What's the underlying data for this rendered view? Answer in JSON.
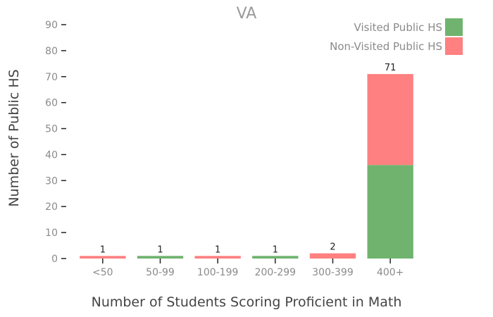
{
  "chart_data": {
    "type": "bar",
    "stacked": true,
    "title": "VA",
    "xlabel": "Number of Students Scoring Proficient in Math",
    "ylabel": "Number of Public HS",
    "categories": [
      "<50",
      "50-99",
      "100-199",
      "200-299",
      "300-399",
      "400+"
    ],
    "series": [
      {
        "name": "Visited Public HS",
        "color": "#6fb36f",
        "values": [
          0,
          1,
          0,
          1,
          0,
          36
        ]
      },
      {
        "name": "Non-Visited Public HS",
        "color": "#ff8080",
        "values": [
          1,
          0,
          1,
          0,
          2,
          35
        ]
      }
    ],
    "totals": [
      1,
      1,
      1,
      1,
      2,
      71
    ],
    "ylim": [
      0,
      90
    ],
    "yticks": [
      0,
      10,
      20,
      30,
      40,
      50,
      60,
      70,
      80,
      90
    ],
    "legend_position": "top-right",
    "grid": false
  }
}
